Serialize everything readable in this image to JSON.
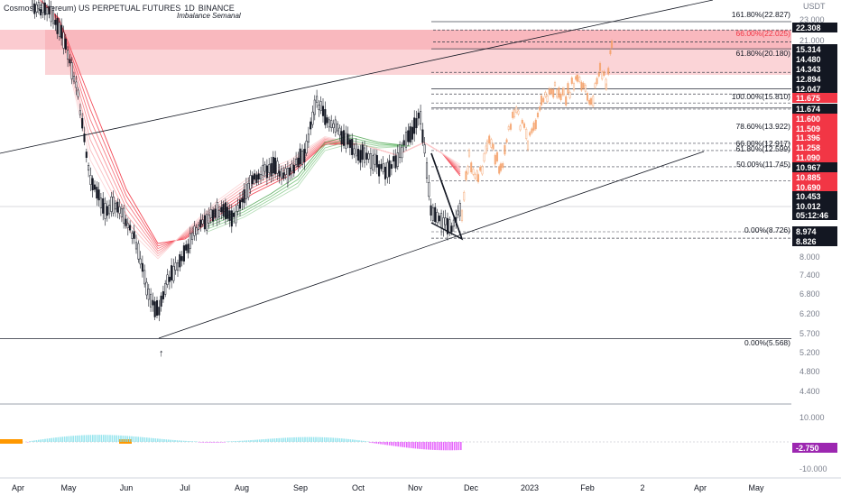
{
  "header": {
    "symbol": "Cosmos (Ethereum) US PERPETUAL FUTURES",
    "interval": "1D",
    "exchange": "BINANCE",
    "indicator": "Imbalance Semanal"
  },
  "axis": {
    "currency": "USDT",
    "price_ticks": [
      "23.000",
      "21.000",
      "6.800",
      "6.200",
      "5.700",
      "5.200",
      "4.800",
      "4.400",
      "7.400",
      "8.000"
    ],
    "osc_ticks": [
      "10.000",
      "-10.000"
    ],
    "months": [
      "Apr",
      "May",
      "Jun",
      "Jul",
      "Aug",
      "Sep",
      "Oct",
      "Nov",
      "Dec",
      "2023",
      "Feb",
      "2",
      "Apr",
      "May"
    ]
  },
  "fib_labels": [
    {
      "text": "161.80%(22.827)",
      "red": false
    },
    {
      "text": "66.00%(22.025)",
      "red": true
    },
    {
      "text": "61.80%(20.180)",
      "red": false
    },
    {
      "text": "100.00%(15.810)",
      "red": false
    },
    {
      "text": "78.60%(13.922)",
      "red": false
    },
    {
      "text": "66.00%(12.917)",
      "red": false
    },
    {
      "text": "61.80%(12.599)",
      "red": false
    },
    {
      "text": "50.00%(11.745)",
      "red": false
    },
    {
      "text": "0.00%(8.726)",
      "red": false
    },
    {
      "text": "0.00%(5.568)",
      "red": false
    }
  ],
  "price_tags": [
    {
      "text": "22.308",
      "color": "#131722"
    },
    {
      "text": "15.314",
      "color": "#131722"
    },
    {
      "text": "14.480",
      "color": "#131722"
    },
    {
      "text": "14.343",
      "color": "#131722"
    },
    {
      "text": "12.894",
      "color": "#131722"
    },
    {
      "text": "12.047",
      "color": "#131722"
    },
    {
      "text": "11.675",
      "color": "#f23645"
    },
    {
      "text": "11.674",
      "color": "#131722"
    },
    {
      "text": "11.600",
      "color": "#f23645"
    },
    {
      "text": "11.509",
      "color": "#f23645"
    },
    {
      "text": "11.396",
      "color": "#f23645"
    },
    {
      "text": "11.258",
      "color": "#f23645"
    },
    {
      "text": "11.090",
      "color": "#f23645"
    },
    {
      "text": "10.967",
      "color": "#131722"
    },
    {
      "text": "10.885",
      "color": "#f23645"
    },
    {
      "text": "10.690",
      "color": "#f23645"
    },
    {
      "text": "10.453",
      "color": "#131722"
    },
    {
      "text": "10.012",
      "color": "#131722"
    },
    {
      "text": "05:12:46",
      "color": "#131722"
    },
    {
      "text": "8.974",
      "color": "#131722"
    },
    {
      "text": "8.826",
      "color": "#131722"
    },
    {
      "text": "-2.750",
      "color": "#9c27b0"
    }
  ],
  "colors": {
    "bull": "#22ab94",
    "bear": "#f23645",
    "zone": "#f7a7ae",
    "projection": "#f5a26b",
    "macd_pos": "#80deea",
    "macd_neg": "#e040fb"
  },
  "chart_data": {
    "type": "candlestick",
    "title": "Cosmos (Ethereum) US PERPETUAL FUTURES, 1D, BINANCE",
    "price_range": [
      4.2,
      24.0
    ],
    "x_categories": [
      "Apr",
      "May",
      "Jun",
      "Jul",
      "Aug",
      "Sep",
      "Oct",
      "Nov",
      "Dec",
      "2023",
      "Feb",
      "2",
      "Apr",
      "May"
    ],
    "close_path": [
      {
        "t": "Apr",
        "v": 23.0
      },
      {
        "t": "May",
        "v": 12.0
      },
      {
        "t": "Jun",
        "v": 6.0
      },
      {
        "t": "Jul",
        "v": 7.6
      },
      {
        "t": "Aug",
        "v": 10.5
      },
      {
        "t": "Sep",
        "v": 12.8
      },
      {
        "t": "Oct",
        "v": 10.7
      },
      {
        "t": "Nov",
        "v": 12.2
      },
      {
        "t": "Nov-end",
        "v": 9.0
      },
      {
        "t": "Dec",
        "v": 10.2
      }
    ],
    "projection_path": [
      {
        "t": "Dec",
        "v": 10.2
      },
      {
        "t": "2023",
        "v": 14.0
      },
      {
        "t": "Feb",
        "v": 17.0
      },
      {
        "t": "Feb-mid",
        "v": 22.8
      }
    ],
    "fib_levels": [
      22.827,
      22.025,
      20.18,
      15.81,
      13.922,
      12.917,
      12.599,
      11.745,
      8.726,
      5.568
    ],
    "imbalance_zone": [
      20.18,
      22.025
    ],
    "oscillator_range": [
      -10,
      10
    ],
    "oscillator_last": -2.75
  }
}
